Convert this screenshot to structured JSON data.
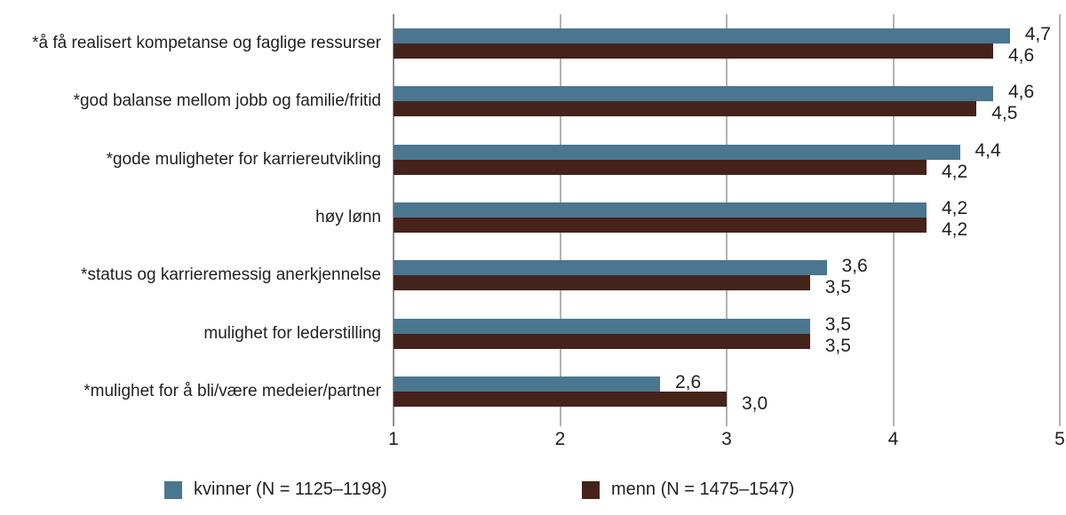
{
  "page": {
    "background": "#ffffff"
  },
  "colors": {
    "kvinner": "#4a7690",
    "menn": "#45231b",
    "axis_line": "#8f8f8f",
    "grid_line": "#b3b3b3",
    "text": "#231f20"
  },
  "chart_data": {
    "type": "bar",
    "orientation": "horizontal",
    "title": "",
    "categories": [
      "*å få realisert kompetanse og faglige ressurser",
      "*god balanse mellom jobb og familie/fritid",
      "*gode muligheter for karriereutvikling",
      "høy lønn",
      "*status og karrieremessig anerkjennelse",
      "mulighet for lederstilling",
      "*mulighet for å bli/være medeier/partner"
    ],
    "series": [
      {
        "name": "kvinner (N = 1125–1198)",
        "color": "#4a7690",
        "values": [
          4.7,
          4.6,
          4.4,
          4.2,
          3.6,
          3.5,
          2.6
        ],
        "value_labels": [
          "4,7",
          "4,6",
          "4,4",
          "4,2",
          "3,6",
          "3,5",
          "2,6"
        ]
      },
      {
        "name": "menn (N = 1475–1547)",
        "color": "#45231b",
        "values": [
          4.6,
          4.5,
          4.2,
          4.2,
          3.5,
          3.5,
          3.0
        ],
        "value_labels": [
          "4,6",
          "4,5",
          "4,2",
          "4,2",
          "3,5",
          "3,5",
          "3,0"
        ]
      }
    ],
    "x_ticks": [
      "1",
      "2",
      "3",
      "4",
      "5"
    ],
    "xlim": [
      1,
      5
    ],
    "xlabel": "",
    "ylabel": "",
    "grid": true,
    "legend_position": "bottom"
  }
}
